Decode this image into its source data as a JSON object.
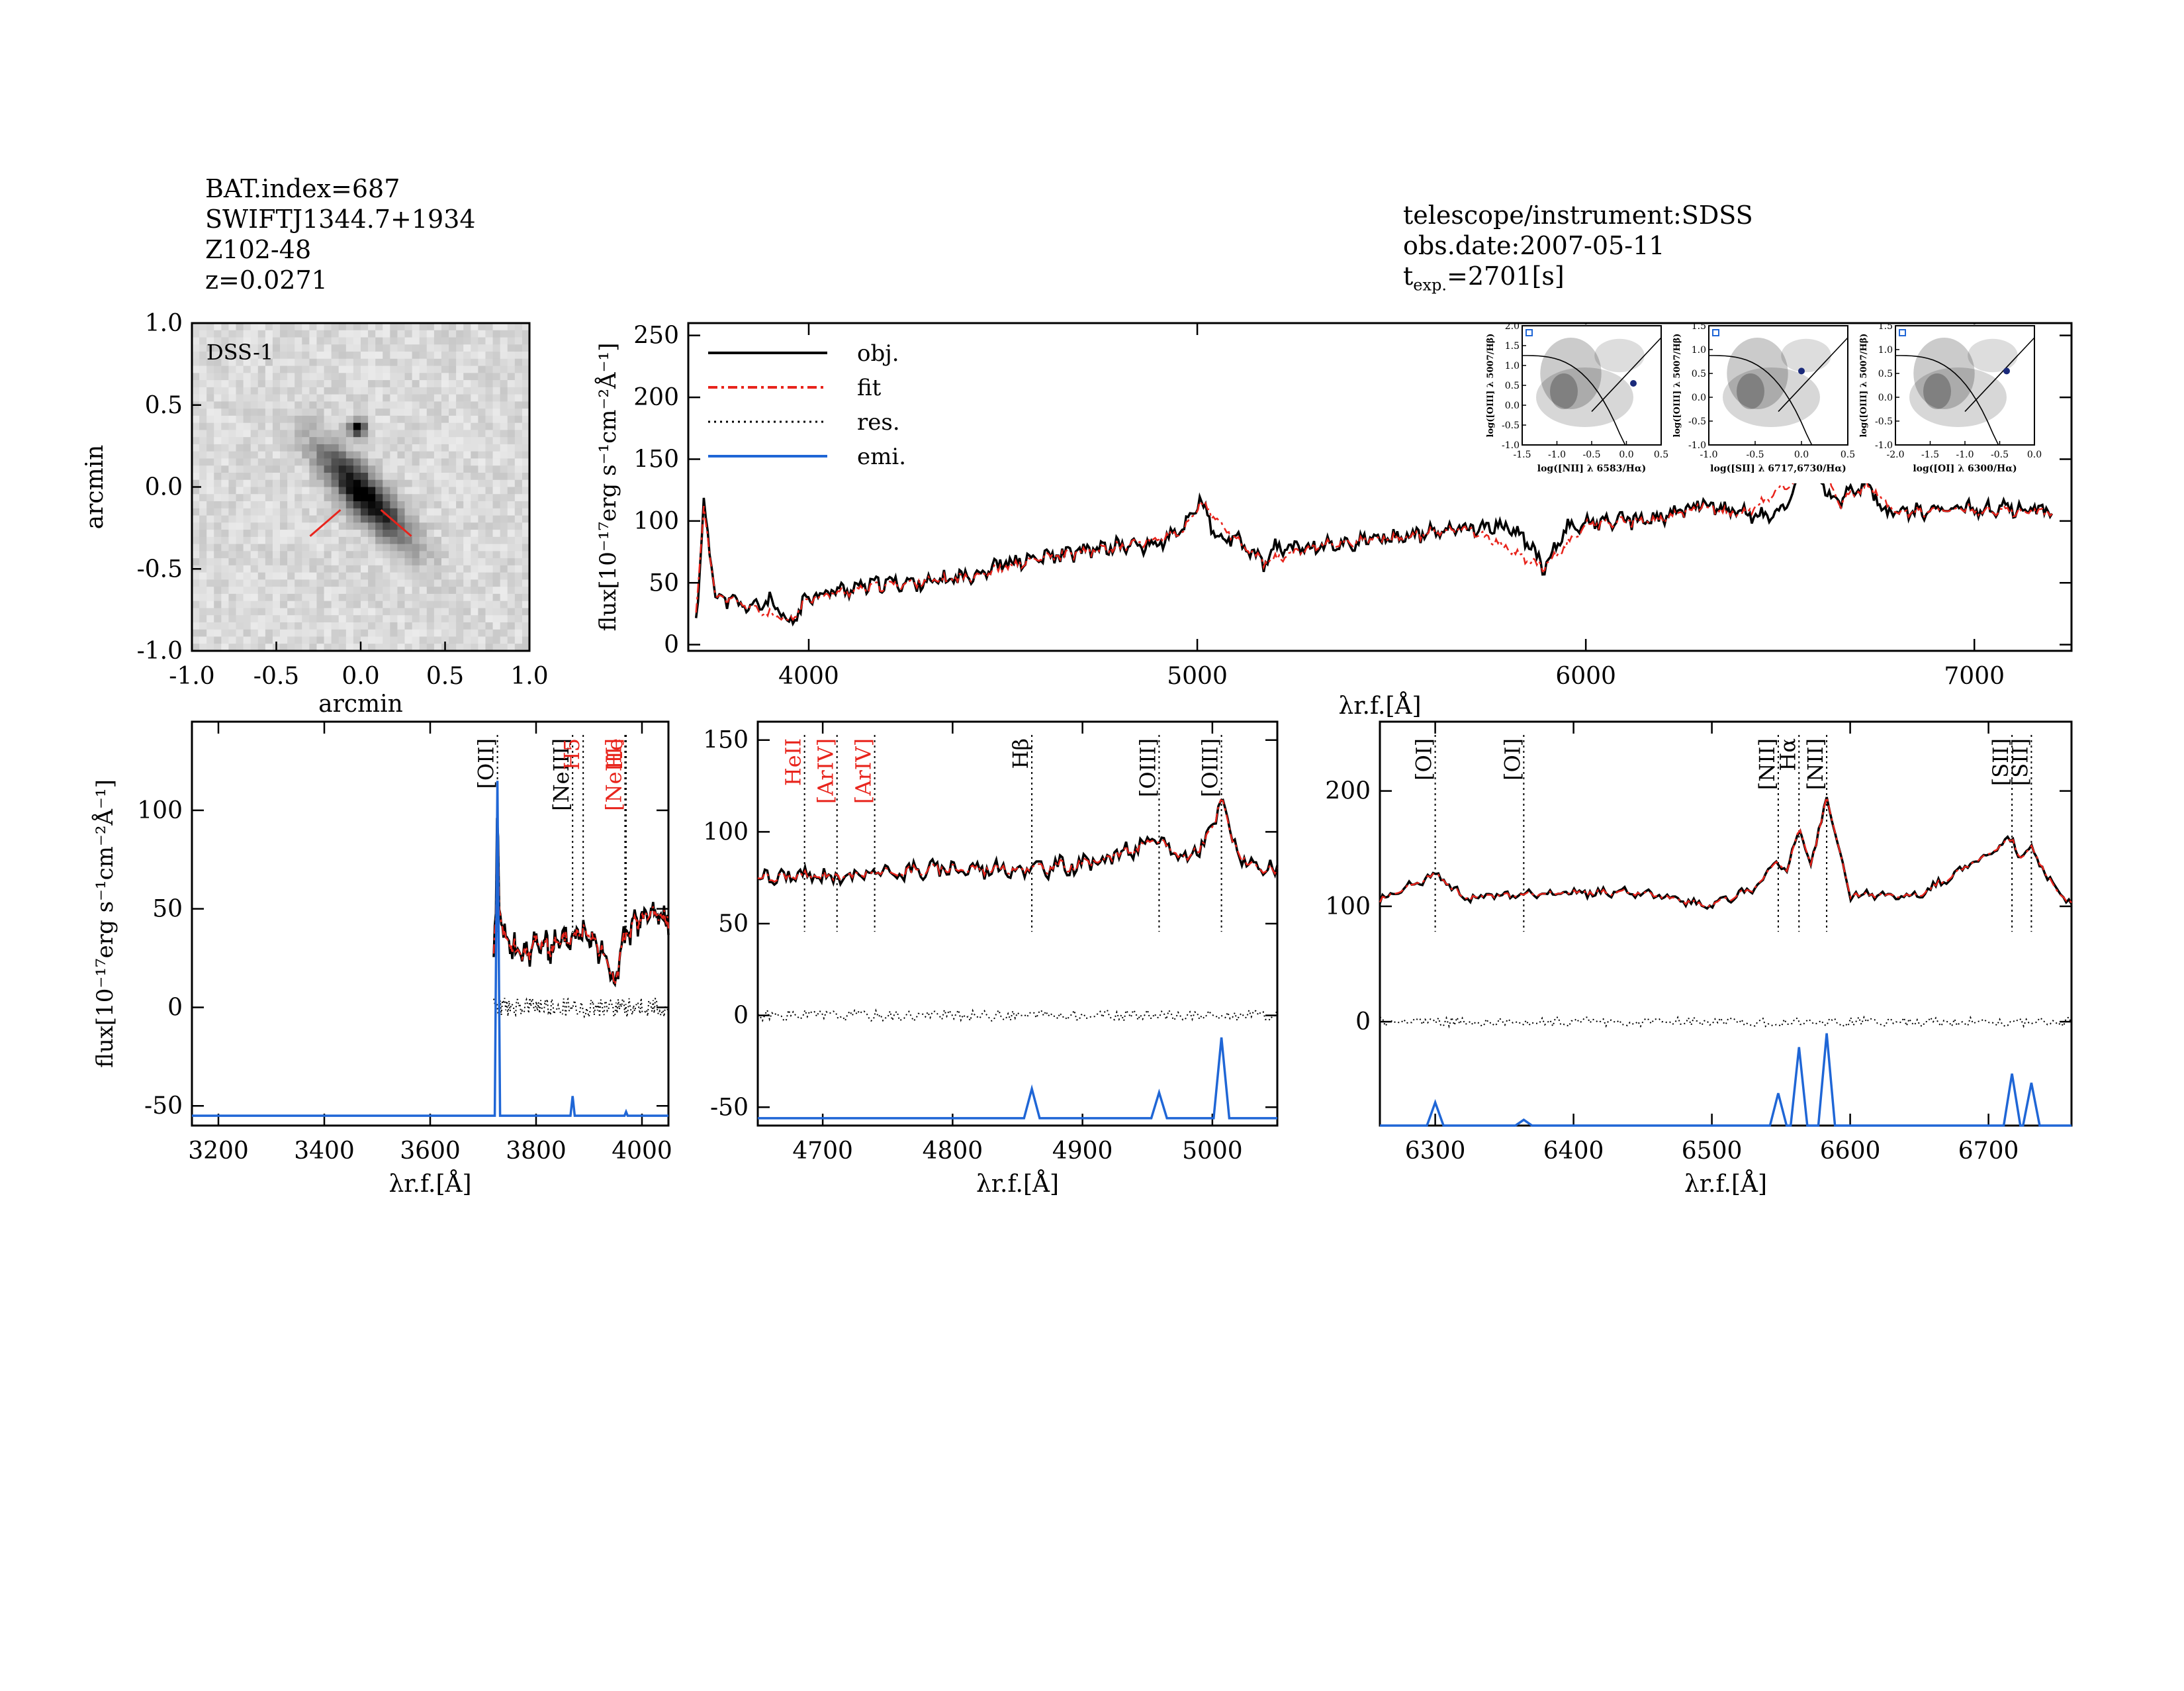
{
  "header_left": {
    "bat_index": "BAT.index=687",
    "swift_name": "SWIFTJ1344.7+1934",
    "counterpart": "Z102-48",
    "redshift": "z=0.0271"
  },
  "header_right": {
    "telescope": "telescope/instrument:SDSS",
    "obs_date": "obs.date:2007-05-11",
    "texp_symbol": "t",
    "texp_sub": "exp.",
    "texp_value": "=2701[s]"
  },
  "colors": {
    "obj": "#000000",
    "fit": "#e8241c",
    "res": "#000000",
    "emi": "#1f66d6",
    "optical_label": "#e8241c"
  },
  "chart_data": [
    {
      "type": "image",
      "panel": "dss-image",
      "label": "DSS-1",
      "xlabel": "arcmin",
      "ylabel": "arcmin",
      "xlim": [
        -1.0,
        1.0
      ],
      "ylim": [
        -1.0,
        1.0
      ],
      "xticks": [
        "-1.0",
        "-0.5",
        "0.0",
        "0.5",
        "1.0"
      ],
      "yticks": [
        "-1.0",
        "-0.5",
        "0.0",
        "0.5",
        "1.0"
      ]
    },
    {
      "type": "line",
      "panel": "full-spectrum",
      "xlabel": "λr.f.[Å]",
      "ylabel": "flux[10⁻¹⁷erg s⁻¹cm⁻²Å⁻¹]",
      "xlim": [
        3690,
        7250
      ],
      "ylim": [
        -5,
        260
      ],
      "xticks": [
        "4000",
        "5000",
        "6000",
        "7000"
      ],
      "yticks": [
        "0",
        "50",
        "100",
        "150",
        "200",
        "250"
      ],
      "legend_position": "top-left",
      "legend": [
        "obj.",
        "fit",
        "res.",
        "emi."
      ],
      "series": [
        {
          "name": "obj.",
          "x": [
            3710,
            3715,
            3730,
            3760,
            3800,
            3850,
            3900,
            3950,
            4000,
            4100,
            4200,
            4300,
            4400,
            4500,
            4600,
            4700,
            4800,
            4860,
            4900,
            4960,
            5007,
            5050,
            5100,
            5175,
            5200,
            5300,
            5400,
            5450,
            5500,
            5600,
            5700,
            5800,
            5850,
            5893,
            5950,
            6000,
            6100,
            6200,
            6300,
            6400,
            6500,
            6550,
            6563,
            6583,
            6620,
            6650,
            6717,
            6731,
            6760,
            6800,
            6900,
            7000,
            7100,
            7200
          ],
          "y": [
            20,
            35,
            115,
            40,
            35,
            30,
            35,
            15,
            40,
            45,
            50,
            50,
            55,
            65,
            70,
            75,
            80,
            80,
            82,
            92,
            118,
            85,
            85,
            65,
            78,
            80,
            82,
            85,
            87,
            90,
            95,
            95,
            85,
            60,
            95,
            98,
            100,
            102,
            115,
            105,
            105,
            138,
            155,
            170,
            120,
            115,
            130,
            130,
            110,
            108,
            108,
            110,
            110,
            108
          ]
        },
        {
          "name": "fit",
          "x": [
            3710,
            3730,
            3760,
            3850,
            3950,
            4000,
            4200,
            4400,
            4600,
            4800,
            4960,
            5007,
            5100,
            5175,
            5300,
            5500,
            5700,
            5893,
            6000,
            6200,
            6300,
            6400,
            6550,
            6563,
            6583,
            6650,
            6717,
            6731,
            6800,
            7000,
            7200
          ],
          "y": [
            25,
            110,
            40,
            30,
            18,
            38,
            48,
            54,
            70,
            79,
            90,
            115,
            84,
            66,
            80,
            86,
            94,
            62,
            97,
            101,
            113,
            104,
            136,
            152,
            168,
            113,
            128,
            128,
            107,
            109,
            107
          ]
        }
      ],
      "inset_bpt": [
        {
          "xlabel": "log([NII] λ 6583/Hα)",
          "ylabel": "log([OIII] λ 5007/Hβ)",
          "xticks": [
            "-1.5",
            "-1.0",
            "-0.5",
            "0.0",
            "0.5"
          ],
          "yticks": [
            "-1.0",
            "-0.5",
            "0.0",
            "0.5",
            "1.0",
            "1.5",
            "2.0"
          ],
          "point": [
            0.1,
            0.55
          ]
        },
        {
          "xlabel": "log([SII] λ 6717,6730/Hα)",
          "ylabel": "log([OIII] λ 5007/Hβ)",
          "xticks": [
            "-1.0",
            "-0.5",
            "0.0",
            "0.5"
          ],
          "yticks": [
            "-1.0",
            "-0.5",
            "0.0",
            "0.5",
            "1.0",
            "1.5"
          ],
          "point": [
            0.0,
            0.55
          ]
        },
        {
          "xlabel": "log([OI] λ 6300/Hα)",
          "ylabel": "log([OIII] λ 5007/Hβ)",
          "xticks": [
            "-2.0",
            "-1.5",
            "-1.0",
            "-0.5",
            "0.0"
          ],
          "yticks": [
            "-1.0",
            "-0.5",
            "0.0",
            "0.5",
            "1.0",
            "1.5"
          ],
          "point": [
            -0.4,
            0.55
          ]
        }
      ]
    },
    {
      "type": "line",
      "panel": "zoom-oii",
      "xlabel": "λr.f.[Å]",
      "ylabel": "flux[10⁻¹⁷erg s⁻¹cm⁻²Å⁻¹]",
      "xlim": [
        3150,
        4050
      ],
      "ylim": [
        -60,
        145
      ],
      "xticks": [
        "3200",
        "3400",
        "3600",
        "3800",
        "4000"
      ],
      "yticks": [
        "-50",
        "0",
        "50",
        "100"
      ],
      "lines": [
        {
          "label": "[OII]",
          "x": 3727,
          "color": "black"
        },
        {
          "label": "[NeIII]",
          "x": 3869,
          "color": "black"
        },
        {
          "label": "H5",
          "x": 3889,
          "color": "red"
        },
        {
          "label": "[NeIII]",
          "x": 3968,
          "color": "red"
        },
        {
          "label": "He",
          "x": 3970,
          "color": "red"
        }
      ],
      "series": [
        {
          "name": "obj.",
          "x": [
            3720,
            3724,
            3727,
            3730,
            3740,
            3760,
            3780,
            3800,
            3820,
            3840,
            3860,
            3880,
            3900,
            3920,
            3940,
            3950,
            3960,
            3980,
            4000,
            4020,
            4050
          ],
          "y": [
            30,
            40,
            112,
            50,
            35,
            30,
            25,
            35,
            30,
            32,
            35,
            38,
            40,
            30,
            20,
            10,
            30,
            40,
            45,
            48,
            45
          ]
        },
        {
          "name": "emi.",
          "x": [
            3150,
            3722,
            3727,
            3732,
            3865,
            3869,
            3873,
            3967,
            3970,
            3973,
            4050
          ],
          "y": [
            -55,
            -55,
            115,
            -55,
            -55,
            -45,
            -55,
            -55,
            -53,
            -55,
            -55
          ]
        }
      ]
    },
    {
      "type": "line",
      "panel": "zoom-hbeta",
      "xlabel": "λr.f.[Å]",
      "xlim": [
        4650,
        5050
      ],
      "ylim": [
        -60,
        160
      ],
      "xticks": [
        "4700",
        "4800",
        "4900",
        "5000"
      ],
      "yticks": [
        "-50",
        "0",
        "50",
        "100",
        "150"
      ],
      "lines": [
        {
          "label": "HeII",
          "x": 4686,
          "color": "red"
        },
        {
          "label": "[ArIV]",
          "x": 4711,
          "color": "red"
        },
        {
          "label": "[ArIV]",
          "x": 4740,
          "color": "red"
        },
        {
          "label": "Hβ",
          "x": 4861,
          "color": "black"
        },
        {
          "label": "[OIII]",
          "x": 4959,
          "color": "black"
        },
        {
          "label": "[OIII]",
          "x": 5007,
          "color": "black"
        }
      ],
      "series": [
        {
          "name": "obj.",
          "x": [
            4650,
            4700,
            4750,
            4800,
            4861,
            4900,
            4959,
            4980,
            5000,
            5007,
            5015,
            5030,
            5050
          ],
          "y": [
            75,
            76,
            78,
            80,
            80,
            82,
            95,
            85,
            100,
            120,
            95,
            80,
            78
          ]
        },
        {
          "name": "emi.",
          "x": [
            4650,
            4855,
            4861,
            4867,
            4953,
            4959,
            4965,
            5001,
            5007,
            5013,
            5050
          ],
          "y": [
            -56,
            -56,
            -40,
            -56,
            -56,
            -42,
            -56,
            -56,
            -12,
            -56,
            -56
          ]
        }
      ]
    },
    {
      "type": "line",
      "panel": "zoom-halpha",
      "xlabel": "λr.f.[Å]",
      "xlim": [
        6260,
        6760
      ],
      "ylim": [
        -90,
        260
      ],
      "xticks": [
        "6300",
        "6400",
        "6500",
        "6600",
        "6700"
      ],
      "yticks": [
        "0",
        "100",
        "200"
      ],
      "lines": [
        {
          "label": "[OI]",
          "x": 6300,
          "color": "black"
        },
        {
          "label": "[OI]",
          "x": 6364,
          "color": "black"
        },
        {
          "label": "[NII]",
          "x": 6548,
          "color": "black"
        },
        {
          "label": "Hα",
          "x": 6563,
          "color": "black"
        },
        {
          "label": "[NII]",
          "x": 6583,
          "color": "black"
        },
        {
          "label": "[SII]",
          "x": 6717,
          "color": "black"
        },
        {
          "label": "[SII]",
          "x": 6731,
          "color": "black"
        }
      ],
      "series": [
        {
          "name": "obj.",
          "x": [
            6260,
            6300,
            6320,
            6364,
            6400,
            6450,
            6497,
            6530,
            6548,
            6555,
            6563,
            6572,
            6583,
            6600,
            6650,
            6717,
            6724,
            6731,
            6750,
            6760
          ],
          "y": [
            105,
            128,
            108,
            110,
            112,
            112,
            100,
            115,
            140,
            130,
            170,
            135,
            195,
            110,
            110,
            158,
            140,
            152,
            110,
            105
          ]
        },
        {
          "name": "emi.",
          "x": [
            6260,
            6294,
            6300,
            6306,
            6358,
            6364,
            6370,
            6542,
            6548,
            6554,
            6557,
            6563,
            6569,
            6577,
            6583,
            6589,
            6711,
            6717,
            6723,
            6725,
            6731,
            6737,
            6760
          ],
          "y": [
            -90,
            -90,
            -70,
            -90,
            -90,
            -85,
            -90,
            -90,
            -62,
            -90,
            -90,
            -22,
            -90,
            -90,
            -10,
            -90,
            -90,
            -45,
            -90,
            -90,
            -53,
            -90,
            -90
          ]
        }
      ]
    }
  ]
}
